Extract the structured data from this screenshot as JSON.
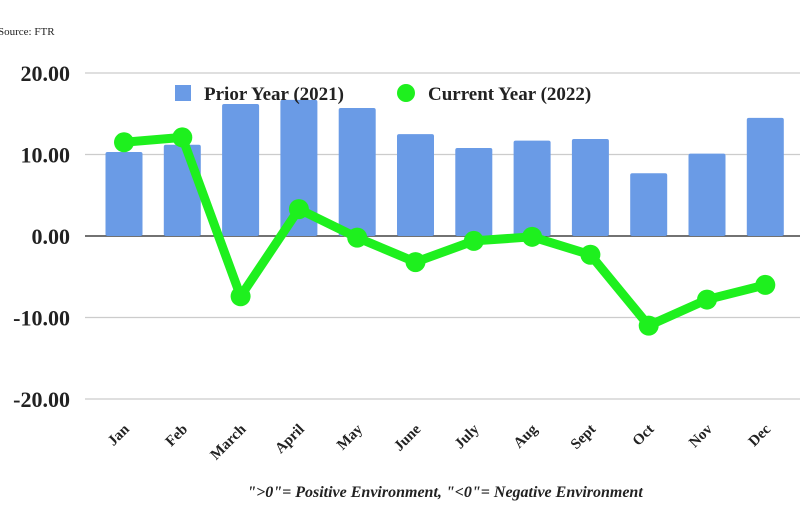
{
  "source": "Source: FTR",
  "footnote": "\">0\"= Positive Environment, \"<0\"= Negative Environment",
  "chart_data": {
    "type": "bar+line",
    "categories": [
      "Jan",
      "Feb",
      "March",
      "April",
      "May",
      "June",
      "July",
      "Aug",
      "Sept",
      "Oct",
      "Nov",
      "Dec"
    ],
    "series": [
      {
        "name": "Prior Year (2021)",
        "type": "bar",
        "color": "#6a9be6",
        "values": [
          10.3,
          11.2,
          16.2,
          16.7,
          15.7,
          12.5,
          10.8,
          11.7,
          11.9,
          7.7,
          10.1,
          14.5
        ]
      },
      {
        "name": "Current Year (2022)",
        "type": "line",
        "color": "#1ef01e",
        "values": [
          11.5,
          12.1,
          -7.4,
          3.3,
          -0.2,
          -3.2,
          -0.6,
          -0.1,
          -2.3,
          -11.0,
          -7.8,
          -6.0
        ]
      }
    ],
    "yticks": [
      "20.00",
      "10.00",
      "0.00",
      "-10.00",
      "-20.00"
    ],
    "ylim": [
      -20,
      20
    ],
    "grid": true,
    "legend": "top-center"
  }
}
